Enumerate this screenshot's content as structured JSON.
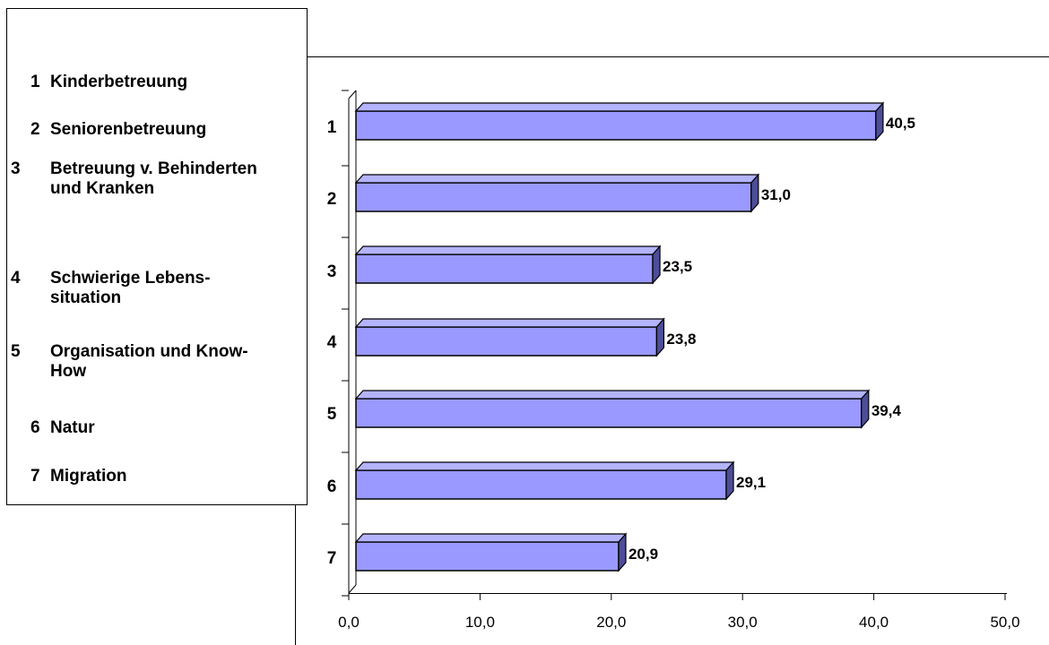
{
  "chart_data": {
    "type": "bar",
    "orientation": "horizontal",
    "style": "3d",
    "categories": [
      "1",
      "2",
      "3",
      "4",
      "5",
      "6",
      "7"
    ],
    "values": [
      40.5,
      31.0,
      23.5,
      23.8,
      39.4,
      29.1,
      20.9
    ],
    "data_labels": [
      "40,5",
      "31,0",
      "23,5",
      "23,8",
      "39,4",
      "29,1",
      "20,9"
    ],
    "x_ticks": [
      "0,0",
      "10,0",
      "20,0",
      "30,0",
      "40,0",
      "50,0"
    ],
    "xlim": [
      0,
      50
    ],
    "grid": false,
    "legend_placement": "left",
    "colors": {
      "bar": "#9999ff",
      "bar_top": "#b3b3ff",
      "bar_side": "#4d4d99",
      "outline": "#000000"
    }
  },
  "legend": {
    "items": [
      {
        "num": "1",
        "text": "Kinderbetreuung"
      },
      {
        "num": "2",
        "text": "Seniorenbetreuung"
      },
      {
        "num": "3",
        "text": "Betreuung v. Behinderten und Kranken"
      },
      {
        "num": "4",
        "text": "Schwierige Lebens- situation"
      },
      {
        "num": "5",
        "text": "Organisation und Know- How"
      },
      {
        "num": "6",
        "text": "Natur"
      },
      {
        "num": "7",
        "text": "Migration"
      }
    ]
  }
}
